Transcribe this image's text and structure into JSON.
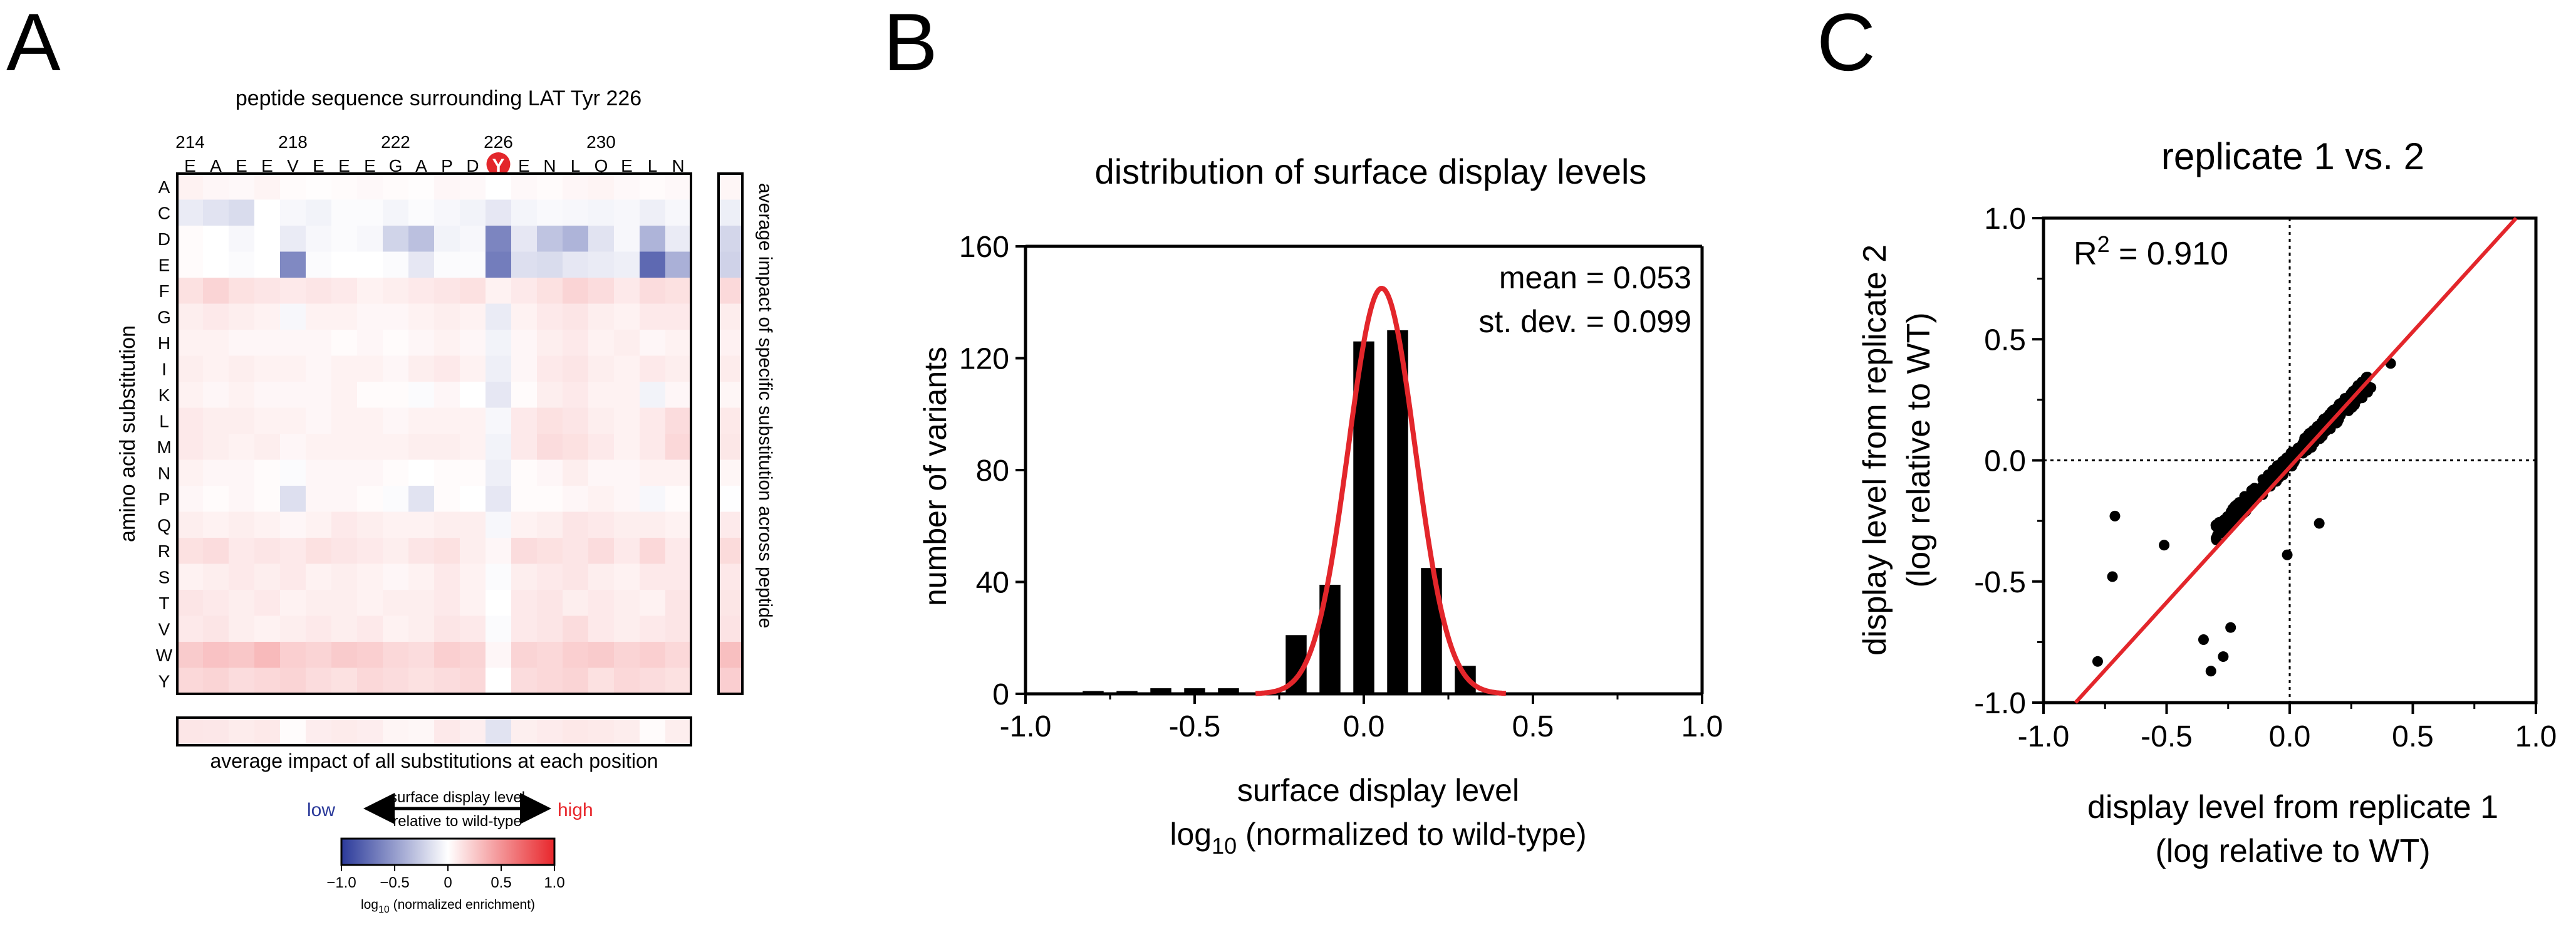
{
  "figure": {
    "panel_labels": [
      "A",
      "B",
      "C"
    ]
  },
  "chart_data": [
    {
      "type": "heatmap",
      "panel": "A",
      "title": "peptide sequence surrounding LAT Tyr 226",
      "x_position_ticks": [
        "214",
        "218",
        "222",
        "226",
        "230"
      ],
      "x_residues": [
        "E",
        "A",
        "E",
        "E",
        "V",
        "E",
        "E",
        "E",
        "G",
        "A",
        "P",
        "D",
        "Y",
        "E",
        "N",
        "L",
        "Q",
        "E",
        "L",
        "N"
      ],
      "highlight_residue": "Y",
      "y_labels": [
        "A",
        "C",
        "D",
        "E",
        "F",
        "G",
        "H",
        "I",
        "K",
        "L",
        "M",
        "N",
        "P",
        "Q",
        "R",
        "S",
        "T",
        "V",
        "W",
        "Y"
      ],
      "ylabel": "amino acid substitution",
      "right_bar_label": "average impact of specific substitution across peptide",
      "bottom_bar_label": "average impact of all substitutions at each position",
      "values": [
        [
          0.06,
          0.04,
          0.03,
          0.05,
          0.02,
          0.01,
          0.02,
          0.03,
          0.02,
          0.01,
          0.04,
          0.03,
          0.0,
          0.03,
          0.02,
          0.04,
          0.05,
          0.03,
          0.02,
          0.03
        ],
        [
          -0.1,
          -0.14,
          -0.18,
          0.0,
          -0.04,
          -0.06,
          -0.02,
          -0.02,
          -0.05,
          -0.02,
          -0.04,
          -0.06,
          -0.12,
          -0.05,
          -0.03,
          -0.04,
          -0.05,
          -0.04,
          -0.08,
          -0.04
        ],
        [
          0.02,
          0.0,
          -0.04,
          0.0,
          -0.1,
          -0.04,
          -0.02,
          -0.04,
          -0.22,
          -0.32,
          -0.06,
          -0.04,
          -0.62,
          -0.12,
          -0.3,
          -0.38,
          -0.14,
          -0.04,
          -0.38,
          -0.1
        ],
        [
          0.02,
          0.0,
          -0.02,
          0.0,
          -0.6,
          -0.02,
          0.0,
          0.0,
          -0.02,
          -0.12,
          -0.02,
          -0.02,
          -0.66,
          -0.16,
          -0.18,
          -0.12,
          -0.1,
          -0.08,
          -0.76,
          -0.4
        ],
        [
          0.14,
          0.2,
          0.14,
          0.12,
          0.1,
          0.12,
          0.1,
          0.06,
          0.08,
          0.1,
          0.12,
          0.14,
          0.06,
          0.1,
          0.14,
          0.2,
          0.16,
          0.1,
          0.16,
          0.14
        ],
        [
          0.08,
          0.1,
          0.08,
          0.06,
          -0.04,
          0.06,
          0.06,
          0.04,
          0.04,
          0.06,
          0.08,
          0.06,
          -0.1,
          0.06,
          0.1,
          0.12,
          0.08,
          0.06,
          0.1,
          0.1
        ],
        [
          0.06,
          0.06,
          0.04,
          0.04,
          0.04,
          0.04,
          0.02,
          0.04,
          0.02,
          0.04,
          0.06,
          0.04,
          -0.06,
          0.04,
          0.08,
          0.1,
          0.06,
          0.08,
          0.04,
          0.06
        ],
        [
          0.08,
          0.06,
          0.08,
          0.06,
          0.06,
          0.04,
          0.06,
          0.06,
          0.04,
          0.08,
          0.1,
          0.06,
          -0.08,
          0.04,
          0.1,
          0.12,
          0.08,
          0.06,
          0.1,
          0.08
        ],
        [
          0.06,
          0.04,
          0.06,
          0.04,
          0.04,
          0.04,
          0.06,
          0.02,
          0.02,
          -0.02,
          0.04,
          0.0,
          -0.12,
          0.02,
          0.08,
          0.1,
          0.06,
          0.06,
          -0.06,
          0.04
        ],
        [
          0.1,
          0.08,
          0.08,
          0.06,
          0.06,
          0.04,
          0.06,
          0.06,
          0.04,
          0.06,
          0.06,
          0.06,
          -0.04,
          0.1,
          0.14,
          0.12,
          0.08,
          0.06,
          0.1,
          0.16
        ],
        [
          0.1,
          0.08,
          0.06,
          0.08,
          0.04,
          0.06,
          0.06,
          0.06,
          0.06,
          0.08,
          0.08,
          0.06,
          -0.06,
          0.1,
          0.16,
          0.14,
          0.1,
          0.06,
          0.1,
          0.18
        ],
        [
          0.06,
          0.04,
          0.04,
          0.02,
          -0.02,
          0.04,
          0.04,
          0.04,
          0.02,
          0.0,
          0.02,
          0.02,
          -0.08,
          0.02,
          0.04,
          0.08,
          0.04,
          0.04,
          0.06,
          0.06
        ],
        [
          0.04,
          0.02,
          0.04,
          0.02,
          -0.16,
          0.04,
          0.04,
          0.02,
          -0.02,
          -0.14,
          0.02,
          0.0,
          -0.12,
          0.02,
          0.02,
          0.04,
          0.06,
          0.04,
          -0.04,
          0.02
        ],
        [
          0.08,
          0.06,
          0.08,
          0.06,
          0.04,
          0.06,
          0.1,
          0.08,
          0.06,
          0.06,
          0.08,
          0.08,
          -0.04,
          0.06,
          0.08,
          0.12,
          0.1,
          0.08,
          0.08,
          0.06
        ],
        [
          0.14,
          0.16,
          0.1,
          0.12,
          0.1,
          0.14,
          0.12,
          0.1,
          0.08,
          0.12,
          0.14,
          0.08,
          0.04,
          0.16,
          0.14,
          0.12,
          0.16,
          0.1,
          0.18,
          0.1
        ],
        [
          0.06,
          0.08,
          0.1,
          0.08,
          0.1,
          0.06,
          0.08,
          0.06,
          0.04,
          0.06,
          0.1,
          0.06,
          -0.02,
          0.08,
          0.1,
          0.12,
          0.08,
          0.06,
          0.1,
          0.1
        ],
        [
          0.12,
          0.1,
          0.08,
          0.1,
          0.06,
          0.08,
          0.08,
          0.06,
          0.08,
          0.08,
          0.1,
          0.06,
          0.0,
          0.1,
          0.12,
          0.08,
          0.1,
          0.08,
          0.06,
          0.12
        ],
        [
          0.1,
          0.12,
          0.08,
          0.06,
          0.08,
          0.1,
          0.08,
          0.1,
          0.06,
          0.08,
          0.12,
          0.1,
          -0.02,
          0.1,
          0.12,
          0.16,
          0.1,
          0.08,
          0.1,
          0.12
        ],
        [
          0.24,
          0.28,
          0.26,
          0.32,
          0.22,
          0.2,
          0.24,
          0.22,
          0.18,
          0.16,
          0.22,
          0.2,
          0.04,
          0.2,
          0.18,
          0.22,
          0.24,
          0.2,
          0.22,
          0.18
        ],
        [
          0.18,
          0.2,
          0.16,
          0.18,
          0.2,
          0.16,
          0.14,
          0.18,
          0.16,
          0.14,
          0.16,
          0.18,
          0.0,
          0.16,
          0.18,
          0.2,
          0.14,
          0.18,
          0.16,
          0.14
        ]
      ],
      "legend": {
        "low_label": "low",
        "high_label": "high",
        "arrow_label_top": "surface display level",
        "arrow_label_bottom": "relative to wild-type",
        "scale_ticks": [
          "−1.0",
          "−0.5",
          "0",
          "0.5",
          "1.0"
        ],
        "scale_range": [
          -1.0,
          1.0
        ],
        "scale_caption": "log10 (normalized enrichment)",
        "low_color": "#2b3a9a",
        "high_color": "#e8262b"
      }
    },
    {
      "type": "bar",
      "panel": "B",
      "title": "distribution of surface display levels",
      "xlabel": "surface display level",
      "xlabel_line2": "log10 (normalized to wild-type)",
      "ylabel": "number of variants",
      "xlim": [
        -1.0,
        1.0
      ],
      "ylim": [
        0,
        160
      ],
      "x_ticks": [
        "-1.0",
        "-0.5",
        "0.0",
        "0.5",
        "1.0"
      ],
      "y_ticks": [
        "0",
        "40",
        "80",
        "120",
        "160"
      ],
      "bin_width": 0.1,
      "bins": [
        {
          "center": -0.8,
          "count": 1
        },
        {
          "center": -0.7,
          "count": 1
        },
        {
          "center": -0.6,
          "count": 2
        },
        {
          "center": -0.5,
          "count": 2
        },
        {
          "center": -0.4,
          "count": 2
        },
        {
          "center": -0.3,
          "count": 0
        },
        {
          "center": -0.2,
          "count": 21
        },
        {
          "center": -0.1,
          "count": 39
        },
        {
          "center": 0.0,
          "count": 126
        },
        {
          "center": 0.1,
          "count": 130
        },
        {
          "center": 0.2,
          "count": 45
        },
        {
          "center": 0.3,
          "count": 10
        },
        {
          "center": 0.4,
          "count": 0
        }
      ],
      "fit": {
        "mean": 0.053,
        "sd": 0.099,
        "peak": 145,
        "color": "#e3262b"
      },
      "annotation_mean": "mean = 0.053",
      "annotation_sd": "st. dev. = 0.099"
    },
    {
      "type": "scatter",
      "panel": "C",
      "title": "replicate 1 vs. 2",
      "xlabel": "display level from replicate 1",
      "xlabel_line2": "(log relative to WT)",
      "ylabel": "display level from replicate 2",
      "ylabel_line2": "(log relative to WT)",
      "xlim": [
        -1.0,
        1.0
      ],
      "ylim": [
        -1.0,
        1.0
      ],
      "x_ticks": [
        "-1.0",
        "-0.5",
        "0.0",
        "0.5",
        "1.0"
      ],
      "y_ticks": [
        "-1.0",
        "-0.5",
        "0.0",
        "0.5",
        "1.0"
      ],
      "r2_label": "R",
      "r2_sup": "2",
      "r2_value": " = 0.910",
      "fit_line": {
        "x": [
          -0.87,
          0.92
        ],
        "y": [
          -1.0,
          1.0
        ],
        "color": "#e3262b"
      },
      "outliers": [
        {
          "x": -0.78,
          "y": -0.83
        },
        {
          "x": -0.72,
          "y": -0.48
        },
        {
          "x": -0.71,
          "y": -0.23
        },
        {
          "x": -0.51,
          "y": -0.35
        },
        {
          "x": -0.35,
          "y": -0.74
        },
        {
          "x": -0.32,
          "y": -0.87
        },
        {
          "x": -0.27,
          "y": -0.81
        },
        {
          "x": -0.24,
          "y": -0.69
        },
        {
          "x": -0.01,
          "y": -0.39
        },
        {
          "x": 0.12,
          "y": -0.26
        },
        {
          "x": 0.41,
          "y": 0.4
        },
        {
          "x": 0.33,
          "y": 0.3
        },
        {
          "x": -0.22,
          "y": -0.23
        },
        {
          "x": -0.28,
          "y": -0.29
        }
      ],
      "cluster": {
        "x_range": [
          -0.3,
          0.32
        ],
        "slope": 0.99,
        "noise": 0.035,
        "n": 330
      }
    }
  ]
}
